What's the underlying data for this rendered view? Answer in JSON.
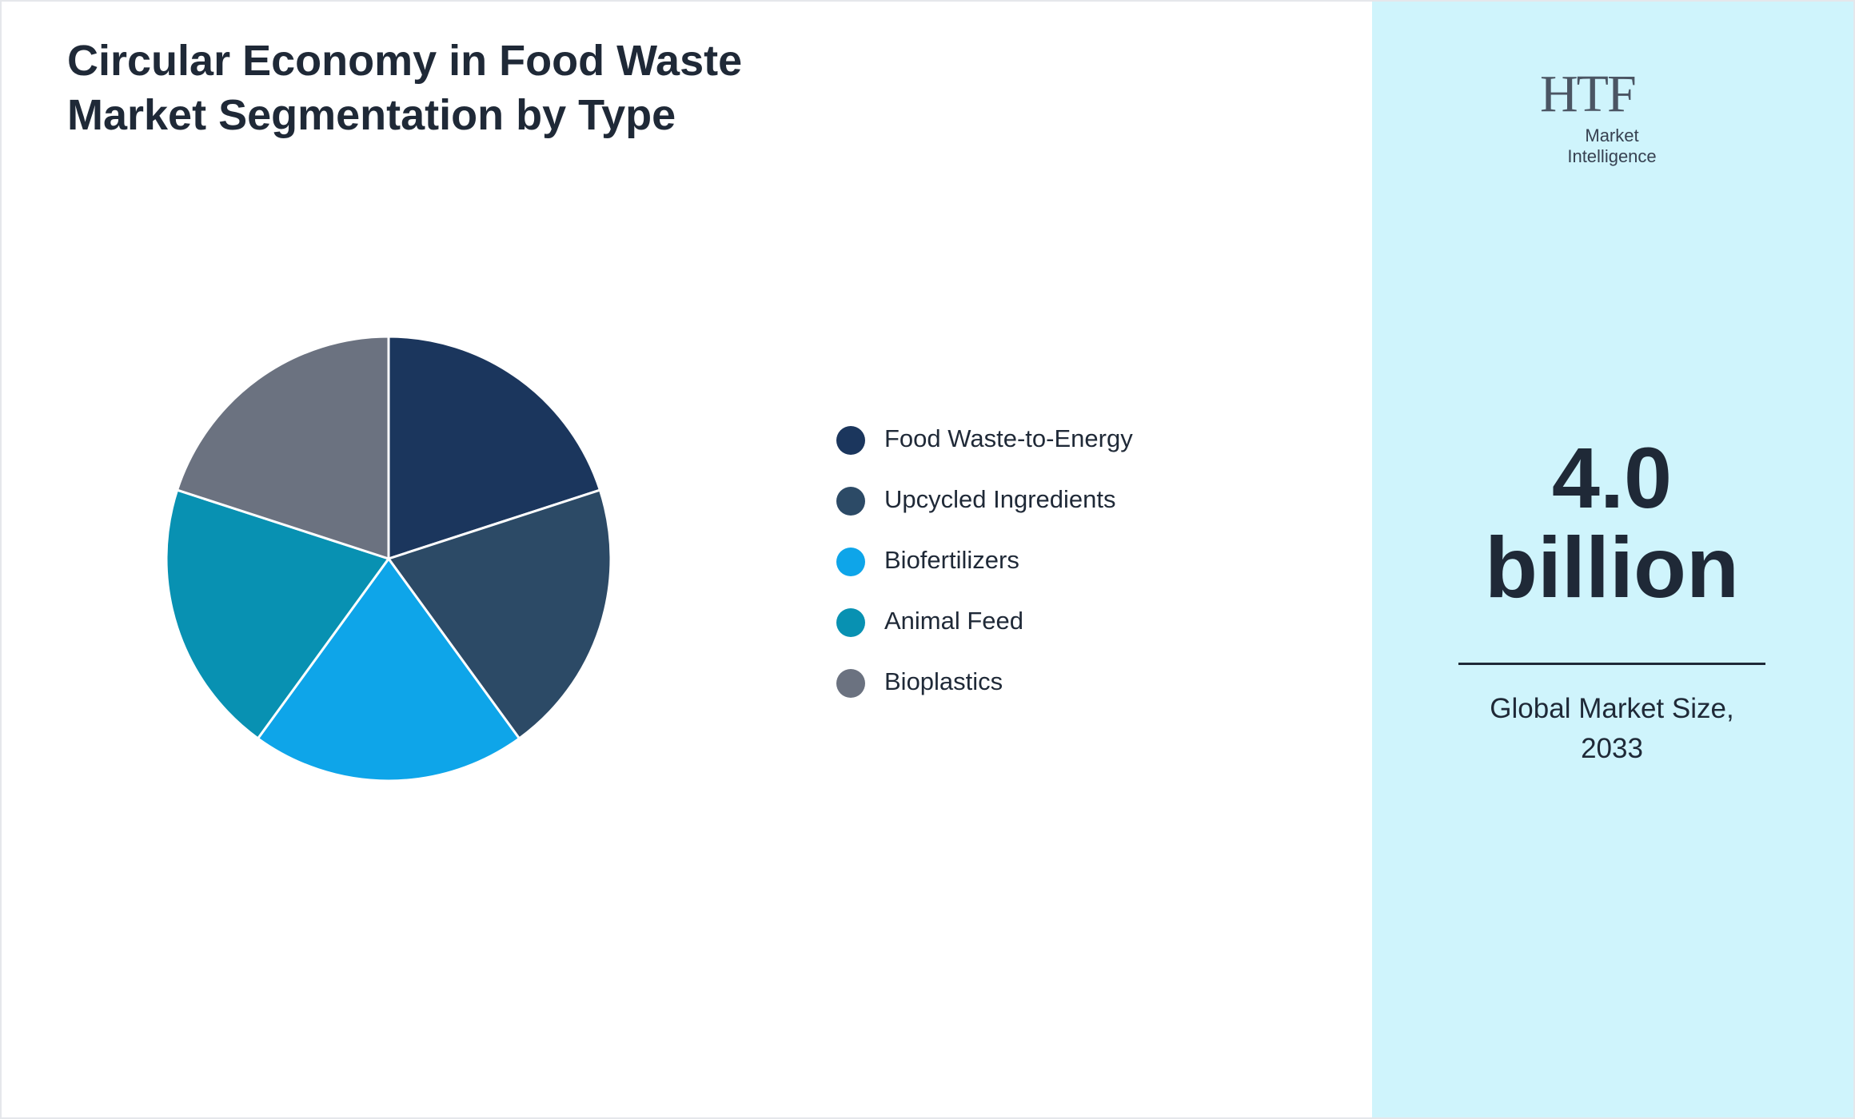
{
  "chart_data": {
    "type": "pie",
    "title": "Circular Economy in Food Waste Market Segmentation by Type",
    "categories": [
      "Food Waste-to-Energy",
      "Upcycled Ingredients",
      "Biofertilizers",
      "Animal Feed",
      "Bioplastics"
    ],
    "values": [
      20,
      20,
      20,
      20,
      20
    ],
    "colors": [
      "#1b365d",
      "#2c4a66",
      "#0ea5e9",
      "#0891b2",
      "#6b7280"
    ]
  },
  "summary": {
    "value": "4.0 billion",
    "caption": "Global Market Size, 2033"
  },
  "logo": {
    "mark": "HTF",
    "text": "Market Intelligence"
  }
}
